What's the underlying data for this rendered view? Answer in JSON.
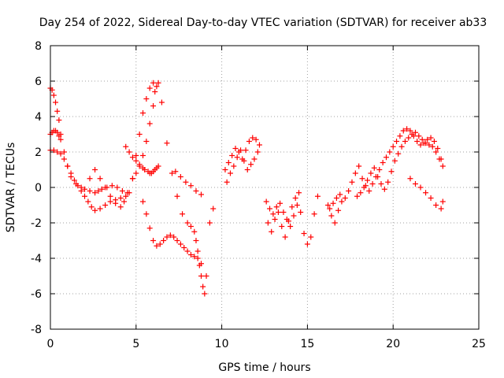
{
  "chart_data": {
    "type": "scatter",
    "title": "Day 254 of 2022, Sidereal Day-to-day VTEC variation (SDTVAR) for receiver ab33",
    "xlabel": "GPS time / hours",
    "ylabel": "SDTVAR / TECUs",
    "xlim": [
      0,
      25
    ],
    "ylim": [
      -8,
      8
    ],
    "xticks": [
      "0",
      "5",
      "10",
      "15",
      "20",
      "25"
    ],
    "yticks": [
      "8",
      "6",
      "4",
      "2",
      "0",
      "-2",
      "-4",
      "-6",
      "-8"
    ],
    "grid": true,
    "marker": "plus",
    "color": "#ff0000",
    "series": [
      {
        "name": "ab33",
        "x": [
          0.0,
          0.1,
          0.2,
          0.3,
          0.4,
          0.5,
          0.6,
          0.8,
          1.0,
          1.2,
          1.5,
          1.8,
          2.0,
          2.3,
          2.6,
          2.8,
          3.0,
          3.3,
          3.6,
          3.9,
          4.2,
          4.5,
          0.0,
          0.2,
          0.4,
          0.6,
          0.8,
          1.0,
          1.2,
          1.4,
          1.6,
          1.8,
          2.0,
          2.2,
          2.4,
          2.6,
          2.9,
          3.2,
          3.5,
          3.8,
          4.1,
          4.4,
          0.0,
          0.1,
          0.2,
          0.3,
          0.4,
          0.5,
          0.6,
          2.3,
          2.6,
          2.9,
          3.2,
          3.5,
          3.8,
          4.1,
          4.3,
          4.6,
          4.8,
          5.0,
          5.2,
          5.4,
          5.6,
          5.8,
          6.0,
          6.2,
          4.4,
          4.6,
          4.8,
          5.0,
          5.2,
          5.4,
          5.5,
          5.7,
          5.8,
          5.9,
          6.0,
          6.1,
          6.2,
          6.3,
          4.8,
          5.0,
          5.2,
          5.4,
          5.6,
          5.8,
          6.0,
          6.1,
          6.3,
          6.5,
          6.8,
          7.1,
          7.4,
          7.7,
          8.0,
          8.2,
          8.4,
          8.5,
          8.6,
          8.7,
          8.8,
          8.9,
          9.0,
          9.1,
          9.3,
          9.5,
          5.4,
          5.6,
          5.8,
          6.0,
          6.2,
          6.4,
          6.6,
          6.8,
          7.0,
          7.2,
          7.4,
          7.6,
          7.8,
          8.0,
          8.2,
          8.4,
          8.6,
          8.8,
          7.3,
          7.6,
          7.9,
          8.2,
          8.5,
          8.8,
          10.2,
          10.4,
          10.6,
          10.8,
          11.0,
          11.2,
          11.4,
          11.6,
          11.8,
          12.0,
          12.2,
          10.3,
          10.5,
          10.7,
          10.9,
          11.1,
          11.3,
          11.5,
          11.7,
          11.9,
          12.1,
          12.6,
          12.8,
          13.0,
          13.2,
          13.4,
          13.6,
          13.8,
          14.0,
          14.2,
          14.4,
          14.6,
          14.8,
          15.0,
          15.2,
          15.4,
          15.6,
          12.7,
          12.9,
          13.1,
          13.3,
          13.5,
          13.7,
          13.9,
          14.1,
          14.3,
          14.5,
          16.2,
          16.4,
          16.6,
          16.8,
          17.0,
          17.2,
          17.4,
          17.6,
          17.8,
          18.0,
          18.2,
          18.4,
          18.6,
          18.8,
          19.0,
          19.2,
          19.4,
          19.6,
          19.8,
          20.0,
          20.2,
          20.4,
          20.6,
          20.8,
          21.0,
          21.2,
          21.4,
          21.6,
          21.8,
          22.0,
          22.2,
          22.4,
          22.6,
          22.8,
          17.9,
          18.1,
          18.3,
          18.5,
          18.7,
          18.9,
          19.1,
          19.3,
          19.5,
          19.7,
          19.9,
          20.1,
          20.3,
          20.5,
          20.7,
          20.9,
          21.1,
          21.3,
          21.5,
          21.7,
          21.9,
          22.1,
          22.3,
          22.5,
          22.7,
          22.9,
          21.0,
          21.3,
          21.6,
          21.9,
          22.2,
          22.5,
          22.8,
          22.9,
          16.3,
          16.5,
          16.7,
          16.9
        ],
        "y": [
          5.6,
          5.5,
          5.2,
          4.8,
          4.3,
          3.8,
          3.0,
          2.0,
          1.2,
          0.6,
          0.2,
          0.0,
          -0.1,
          -0.2,
          -0.3,
          -0.2,
          -0.1,
          0.0,
          0.1,
          0.0,
          -0.2,
          -0.3,
          2.1,
          2.1,
          2.0,
          1.9,
          1.6,
          1.2,
          0.8,
          0.4,
          0.1,
          -0.2,
          -0.5,
          -0.8,
          -1.1,
          -1.3,
          -1.2,
          -1.0,
          -0.8,
          -0.7,
          -0.6,
          -0.5,
          3.0,
          3.1,
          3.2,
          3.2,
          3.1,
          2.9,
          2.7,
          0.5,
          1.0,
          0.5,
          0.0,
          -0.5,
          -0.9,
          -1.1,
          -0.8,
          -0.3,
          0.5,
          1.8,
          3.0,
          4.2,
          5.0,
          5.6,
          5.9,
          5.7,
          2.3,
          2.0,
          1.7,
          1.5,
          1.3,
          1.1,
          1.0,
          0.9,
          0.8,
          0.8,
          0.9,
          1.0,
          1.1,
          1.2,
          0.5,
          0.8,
          1.2,
          1.8,
          2.6,
          3.6,
          4.6,
          5.4,
          5.9,
          4.8,
          2.5,
          0.8,
          -0.5,
          -1.5,
          -2.0,
          -2.2,
          -2.5,
          -3.0,
          -3.6,
          -4.4,
          -5.0,
          -5.6,
          -6.0,
          -5.0,
          -2.0,
          -1.2,
          -0.8,
          -1.5,
          -2.3,
          -3.0,
          -3.3,
          -3.2,
          -3.0,
          -2.8,
          -2.7,
          -2.8,
          -3.0,
          -3.2,
          -3.4,
          -3.6,
          -3.8,
          -3.9,
          -4.0,
          -4.3,
          0.9,
          0.6,
          0.3,
          0.1,
          -0.2,
          -0.4,
          1.0,
          1.4,
          1.8,
          2.2,
          2.0,
          1.6,
          2.1,
          2.6,
          2.8,
          2.7,
          2.4,
          0.3,
          0.8,
          1.2,
          1.7,
          2.1,
          1.5,
          1.0,
          1.3,
          1.6,
          2.0,
          -0.8,
          -1.2,
          -1.5,
          -1.1,
          -0.9,
          -1.4,
          -1.8,
          -2.2,
          -1.6,
          -1.0,
          -1.4,
          -2.6,
          -3.2,
          -2.8,
          -1.5,
          -0.5,
          -2.0,
          -2.5,
          -1.8,
          -1.4,
          -2.2,
          -2.8,
          -1.9,
          -1.1,
          -0.6,
          -0.3,
          -1.0,
          -1.6,
          -2.0,
          -1.3,
          -0.8,
          -0.6,
          -0.2,
          0.3,
          0.8,
          1.2,
          0.5,
          0.1,
          -0.2,
          0.2,
          0.6,
          1.0,
          1.4,
          1.7,
          2.0,
          2.3,
          2.6,
          2.9,
          3.2,
          3.3,
          3.2,
          2.9,
          2.6,
          2.4,
          2.5,
          2.7,
          2.8,
          2.6,
          2.2,
          1.6,
          -0.5,
          -0.3,
          0.0,
          0.4,
          0.8,
          1.1,
          0.6,
          0.2,
          -0.1,
          0.3,
          0.9,
          1.5,
          1.9,
          2.3,
          2.6,
          2.8,
          3.0,
          3.1,
          2.9,
          2.7,
          2.5,
          2.4,
          2.3,
          2.0,
          1.6,
          1.2,
          0.5,
          0.2,
          0.0,
          -0.3,
          -0.6,
          -1.0,
          -1.2,
          -0.8,
          -1.2,
          -0.9,
          -0.6,
          -0.4
        ]
      }
    ]
  }
}
